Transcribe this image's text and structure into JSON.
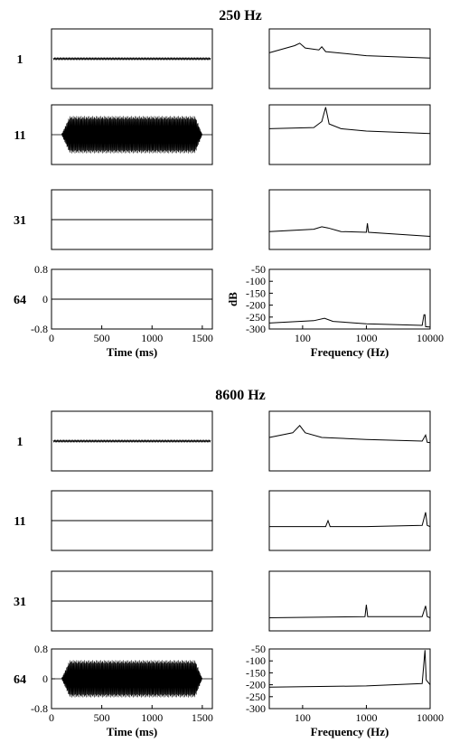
{
  "chart_data": [
    {
      "section": "250 Hz",
      "rows": [
        {
          "label": "1",
          "time": {
            "amplitude": 0.01
          },
          "spectrum": {
            "points": [
              [
                30,
                -150
              ],
              [
                75,
                -120
              ],
              [
                90,
                -110
              ],
              [
                110,
                -130
              ],
              [
                180,
                -138
              ],
              [
                200,
                -125
              ],
              [
                230,
                -145
              ],
              [
                1000,
                -162
              ],
              [
                10000,
                -172
              ]
            ]
          }
        },
        {
          "label": "11",
          "time": {
            "amplitude": 0.5
          },
          "spectrum": {
            "points": [
              [
                30,
                -150
              ],
              [
                150,
                -145
              ],
              [
                200,
                -120
              ],
              [
                230,
                -60
              ],
              [
                260,
                -130
              ],
              [
                400,
                -150
              ],
              [
                1000,
                -160
              ],
              [
                10000,
                -170
              ]
            ]
          }
        },
        {
          "label": "31",
          "time": {
            "amplitude": 0
          },
          "spectrum": {
            "points": [
              [
                30,
                -225
              ],
              [
                150,
                -215
              ],
              [
                200,
                -205
              ],
              [
                250,
                -210
              ],
              [
                400,
                -225
              ],
              [
                1000,
                -228
              ],
              [
                1040,
                -190
              ],
              [
                1080,
                -228
              ],
              [
                10000,
                -245
              ]
            ]
          }
        },
        {
          "label": "64",
          "time": {
            "amplitude": 0
          },
          "spectrum": {
            "points": [
              [
                30,
                -275
              ],
              [
                150,
                -265
              ],
              [
                220,
                -255
              ],
              [
                300,
                -268
              ],
              [
                1000,
                -278
              ],
              [
                7500,
                -285
              ],
              [
                8000,
                -240
              ],
              [
                8300,
                -240
              ],
              [
                8500,
                -290
              ],
              [
                10000,
                -292
              ]
            ]
          }
        }
      ],
      "time_axis": {
        "ticks": [
          0,
          500,
          1000,
          1500
        ],
        "range": [
          0,
          1600
        ],
        "ylabel_ticks": [
          "0.8",
          "0",
          "-0.8"
        ],
        "yrange": [
          -0.8,
          0.8
        ],
        "label": "Time (ms)"
      },
      "freq_axis": {
        "ticks": [
          "100",
          "1000",
          "10000"
        ],
        "yticks": [
          "-50",
          "-100",
          "-150",
          "-200",
          "-250",
          "-300"
        ],
        "yrange": [
          -300,
          -50
        ],
        "ylabel": "dB",
        "label": "Frequency (Hz)",
        "xrange": [
          30,
          10000
        ],
        "scale": "log"
      }
    },
    {
      "section": "8600 Hz",
      "rows": [
        {
          "label": "1",
          "time": {
            "amplitude": 0.01
          },
          "spectrum": {
            "points": [
              [
                30,
                -160
              ],
              [
                70,
                -140
              ],
              [
                90,
                -110
              ],
              [
                110,
                -140
              ],
              [
                200,
                -160
              ],
              [
                1000,
                -168
              ],
              [
                7500,
                -175
              ],
              [
                8500,
                -150
              ],
              [
                9000,
                -180
              ],
              [
                10000,
                -182
              ]
            ]
          }
        },
        {
          "label": "11",
          "time": {
            "amplitude": 0
          },
          "spectrum": {
            "points": [
              [
                30,
                -200
              ],
              [
                230,
                -200
              ],
              [
                250,
                -175
              ],
              [
                270,
                -200
              ],
              [
                1000,
                -200
              ],
              [
                7500,
                -195
              ],
              [
                8500,
                -140
              ],
              [
                9000,
                -195
              ],
              [
                10000,
                -200
              ]
            ]
          }
        },
        {
          "label": "31",
          "time": {
            "amplitude": 0
          },
          "spectrum": {
            "points": [
              [
                30,
                -245
              ],
              [
                950,
                -240
              ],
              [
                1000,
                -190
              ],
              [
                1050,
                -240
              ],
              [
                7500,
                -240
              ],
              [
                8500,
                -195
              ],
              [
                9000,
                -240
              ],
              [
                10000,
                -245
              ]
            ]
          }
        },
        {
          "label": "64",
          "time": {
            "amplitude": 0.5
          },
          "spectrum": {
            "points": [
              [
                30,
                -210
              ],
              [
                1000,
                -205
              ],
              [
                7500,
                -195
              ],
              [
                8300,
                -55
              ],
              [
                8700,
                -180
              ],
              [
                10000,
                -200
              ]
            ]
          }
        }
      ],
      "time_axis": {
        "ticks": [
          0,
          500,
          1000,
          1500
        ],
        "range": [
          0,
          1600
        ],
        "ylabel_ticks": [
          "0.8",
          "0",
          "-0.8"
        ],
        "yrange": [
          -0.8,
          0.8
        ],
        "label": "Time (ms)"
      },
      "freq_axis": {
        "ticks": [
          "100",
          "1000",
          "10000"
        ],
        "yticks": [
          "-50",
          "-100",
          "-150",
          "-200",
          "-250",
          "-300"
        ],
        "yrange": [
          -300,
          -50
        ],
        "ylabel": "",
        "label": "Frequency (Hz)",
        "xrange": [
          30,
          10000
        ],
        "scale": "log"
      }
    }
  ]
}
